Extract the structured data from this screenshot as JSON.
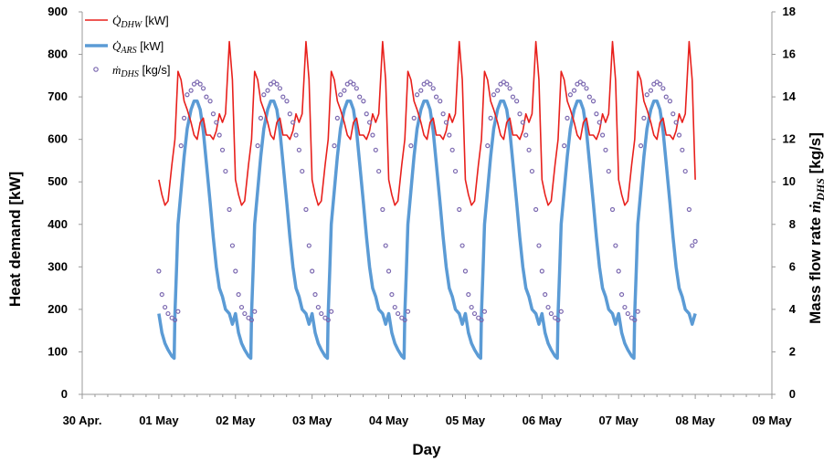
{
  "chart_data": {
    "type": "line",
    "xlabel": "Day",
    "ylabel_left": "Heat demand [kW]",
    "ylabel_right_prefix": "Mass flow rate ",
    "ylabel_right_symbol": "ṁ",
    "ylabel_right_sub": "DHS",
    "ylabel_right_unit": " [kg/s]",
    "x_ticks": [
      "30 Apr.",
      "01 May",
      "02 May",
      "03 May",
      "04 May",
      "05 May",
      "06 May",
      "07 May",
      "08 May",
      "09 May"
    ],
    "xlim": [
      -1,
      8
    ],
    "ylim_left": [
      0,
      900
    ],
    "ylim_right": [
      0,
      18
    ],
    "y_ticks_left": [
      0,
      100,
      200,
      300,
      400,
      500,
      600,
      700,
      800,
      900
    ],
    "y_ticks_right": [
      0,
      2,
      4,
      6,
      8,
      10,
      12,
      14,
      16,
      18
    ],
    "legend_placement": "top-left",
    "series": [
      {
        "name_symbol": "Q̇",
        "name_sub": "DHW",
        "name_unit": "[kW]",
        "axis": "left",
        "style": "line",
        "color": "#e8201c",
        "day_profile": [
          [
            0.0,
            505
          ],
          [
            0.04,
            470
          ],
          [
            0.08,
            445
          ],
          [
            0.12,
            455
          ],
          [
            0.17,
            540
          ],
          [
            0.21,
            600
          ],
          [
            0.25,
            760
          ],
          [
            0.29,
            740
          ],
          [
            0.33,
            690
          ],
          [
            0.37,
            670
          ],
          [
            0.42,
            640
          ],
          [
            0.46,
            610
          ],
          [
            0.5,
            600
          ],
          [
            0.54,
            640
          ],
          [
            0.58,
            650
          ],
          [
            0.62,
            610
          ],
          [
            0.67,
            610
          ],
          [
            0.71,
            600
          ],
          [
            0.75,
            620
          ],
          [
            0.79,
            660
          ],
          [
            0.83,
            640
          ],
          [
            0.87,
            660
          ],
          [
            0.92,
            830
          ],
          [
            0.96,
            740
          ]
        ]
      },
      {
        "name_symbol": "Q̇",
        "name_sub": "ARS",
        "name_unit": "[kW]",
        "axis": "left",
        "style": "line",
        "color": "#5b9bd5",
        "day_profile": [
          [
            0.0,
            190
          ],
          [
            0.04,
            145
          ],
          [
            0.08,
            120
          ],
          [
            0.12,
            105
          ],
          [
            0.17,
            90
          ],
          [
            0.2,
            85
          ],
          [
            0.21,
            190
          ],
          [
            0.23,
            290
          ],
          [
            0.25,
            400
          ],
          [
            0.29,
            480
          ],
          [
            0.33,
            560
          ],
          [
            0.37,
            625
          ],
          [
            0.42,
            670
          ],
          [
            0.46,
            690
          ],
          [
            0.5,
            690
          ],
          [
            0.54,
            670
          ],
          [
            0.58,
            620
          ],
          [
            0.62,
            545
          ],
          [
            0.67,
            450
          ],
          [
            0.71,
            370
          ],
          [
            0.75,
            300
          ],
          [
            0.79,
            250
          ],
          [
            0.83,
            230
          ],
          [
            0.87,
            200
          ],
          [
            0.92,
            190
          ],
          [
            0.96,
            165
          ]
        ]
      },
      {
        "name_symbol": "ṁ",
        "name_sub": "DHS",
        "name_unit": "[kg/s]",
        "axis": "right",
        "style": "scatter",
        "color": "#7b68b0",
        "day_profile": [
          [
            0.0,
            5.8
          ],
          [
            0.04,
            4.7
          ],
          [
            0.08,
            4.1
          ],
          [
            0.12,
            3.8
          ],
          [
            0.17,
            3.6
          ],
          [
            0.21,
            3.5
          ],
          [
            0.25,
            3.9
          ],
          [
            0.29,
            11.7
          ],
          [
            0.33,
            13.0
          ],
          [
            0.37,
            14.1
          ],
          [
            0.42,
            14.3
          ],
          [
            0.46,
            14.6
          ],
          [
            0.5,
            14.7
          ],
          [
            0.54,
            14.6
          ],
          [
            0.58,
            14.4
          ],
          [
            0.62,
            14.0
          ],
          [
            0.67,
            13.8
          ],
          [
            0.71,
            13.2
          ],
          [
            0.75,
            12.8
          ],
          [
            0.79,
            12.2
          ],
          [
            0.83,
            11.5
          ],
          [
            0.87,
            10.5
          ],
          [
            0.92,
            8.7
          ],
          [
            0.96,
            7.0
          ]
        ]
      }
    ],
    "day_offsets": [
      0,
      1,
      2,
      3,
      4,
      5,
      6
    ],
    "final_point": {
      "x": 7,
      "DHW": 505,
      "ARS": 190,
      "DHS": 7.2
    }
  }
}
